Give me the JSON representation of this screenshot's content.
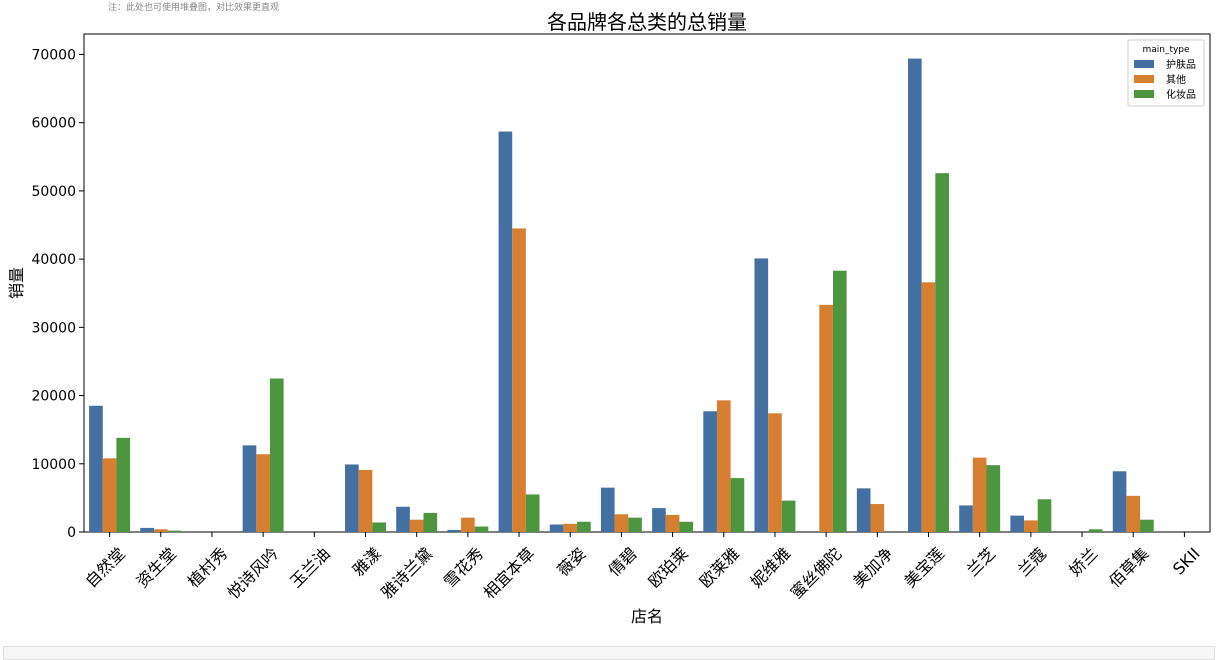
{
  "note": "注：此处也可使用堆叠图，对比效果更直观",
  "colors": {
    "护肤品": "#4470a1",
    "其他": "#d67f31",
    "化妆品": "#4e9540"
  },
  "chart_data": {
    "type": "bar",
    "title": "各品牌各总类的总销量",
    "xlabel": "店名",
    "ylabel": "销量",
    "ylim": [
      0,
      73000
    ],
    "yticks": [
      0,
      10000,
      20000,
      30000,
      40000,
      50000,
      60000,
      70000
    ],
    "legend": {
      "title": "main_type",
      "placement": "top-right"
    },
    "categories": [
      "自然堂",
      "资生堂",
      "植村秀",
      "悦诗风吟",
      "玉兰油",
      "雅漾",
      "雅诗兰黛",
      "雪花秀",
      "相宜本草",
      "薇姿",
      "倩碧",
      "欧珀莱",
      "欧莱雅",
      "妮维雅",
      "蜜丝佛陀",
      "美加净",
      "美宝莲",
      "兰芝",
      "兰蔻",
      "娇兰",
      "佰草集",
      "SKII"
    ],
    "series": [
      {
        "name": "护肤品",
        "values": [
          18500,
          600,
          0,
          12700,
          0,
          9900,
          3700,
          300,
          58700,
          1100,
          6500,
          3500,
          17700,
          40100,
          0,
          6400,
          69400,
          3900,
          2400,
          0,
          8900,
          0
        ]
      },
      {
        "name": "其他",
        "values": [
          10800,
          400,
          0,
          11400,
          0,
          9100,
          1800,
          2100,
          44500,
          1200,
          2600,
          2500,
          19300,
          17400,
          33300,
          4100,
          36600,
          10900,
          1700,
          0,
          5300,
          0
        ]
      },
      {
        "name": "化妆品",
        "values": [
          13800,
          200,
          0,
          22500,
          0,
          1400,
          2800,
          800,
          5500,
          1500,
          2100,
          1500,
          7900,
          4600,
          38300,
          0,
          52600,
          9800,
          4800,
          400,
          1800,
          0
        ]
      }
    ]
  }
}
